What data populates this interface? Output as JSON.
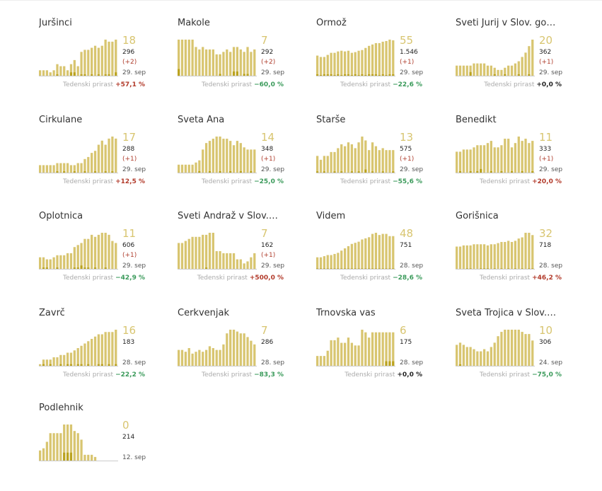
{
  "label_growth": "Tedenski prirast",
  "colors": {
    "bar": "#d8c570",
    "bar_new": "#bba320",
    "baseline": "#cccccc",
    "positive": "#b23a2a",
    "negative": "#3a9a5a"
  },
  "chart_data": [
    {
      "type": "bar",
      "title": "Juršinci",
      "active": "18",
      "total": "296",
      "delta": "(+2)",
      "date": "29. sep",
      "growth": "+57,1 %",
      "trend": "pos",
      "values": [
        3,
        3,
        3,
        2,
        3,
        6,
        5,
        5,
        3,
        6,
        8,
        5,
        12,
        13,
        13,
        14,
        15,
        14,
        15,
        18,
        17,
        17,
        18
      ],
      "new": [
        0,
        0,
        0,
        0,
        0,
        1,
        0,
        0,
        0,
        2,
        2,
        0,
        1,
        1,
        0,
        1,
        0,
        1,
        0,
        1,
        1,
        0,
        2
      ]
    },
    {
      "type": "bar",
      "title": "Makole",
      "active": "7",
      "total": "292",
      "delta": "(+2)",
      "date": "29. sep",
      "growth": "−60,0 %",
      "trend": "neg",
      "values": [
        15,
        15,
        15,
        15,
        15,
        12,
        11,
        12,
        11,
        11,
        11,
        9,
        9,
        10,
        11,
        10,
        12,
        12,
        11,
        10,
        12,
        10,
        11
      ],
      "new": [
        3,
        0,
        0,
        0,
        0,
        0,
        0,
        0,
        0,
        0,
        0,
        0,
        1,
        0,
        0,
        0,
        2,
        2,
        0,
        1,
        1,
        0,
        0
      ]
    },
    {
      "type": "bar",
      "title": "Ormož",
      "active": "55",
      "total": "1.546",
      "delta": "(+1)",
      "date": "29. sep",
      "growth": "−22,6 %",
      "trend": "neg",
      "values": [
        30,
        28,
        28,
        31,
        34,
        34,
        36,
        37,
        36,
        37,
        34,
        35,
        37,
        38,
        41,
        44,
        46,
        48,
        48,
        50,
        51,
        53,
        52
      ],
      "new": [
        3,
        2,
        3,
        3,
        3,
        2,
        3,
        2,
        3,
        3,
        2,
        3,
        2,
        3,
        2,
        3,
        3,
        3,
        2,
        3,
        2,
        3,
        3
      ]
    },
    {
      "type": "bar",
      "title": "Sveti Jurij v Slov. go…",
      "active": "20",
      "total": "362",
      "delta": "(+1)",
      "date": "29. sep",
      "growth": "+0,0 %",
      "trend": "zero",
      "values": [
        5,
        5,
        5,
        5,
        5,
        6,
        6,
        6,
        6,
        5,
        5,
        4,
        3,
        3,
        4,
        5,
        5,
        6,
        7,
        9,
        11,
        14,
        17
      ],
      "new": [
        0,
        0,
        0,
        0,
        2,
        0,
        0,
        0,
        0,
        0,
        0,
        1,
        0,
        0,
        1,
        0,
        0,
        0,
        1,
        0,
        0,
        1,
        0
      ]
    },
    {
      "type": "bar",
      "title": "Cirkulane",
      "active": "17",
      "total": "288",
      "delta": "(+1)",
      "date": "29. sep",
      "growth": "+12,5 %",
      "trend": "pos",
      "values": [
        4,
        4,
        4,
        4,
        4,
        5,
        5,
        5,
        5,
        4,
        4,
        5,
        5,
        7,
        8,
        10,
        11,
        14,
        16,
        14,
        17,
        18,
        17
      ],
      "new": [
        0,
        0,
        0,
        0,
        0,
        1,
        0,
        1,
        0,
        0,
        1,
        0,
        0,
        1,
        0,
        0,
        1,
        0,
        0,
        1,
        0,
        1,
        0
      ]
    },
    {
      "type": "bar",
      "title": "Sveta Ana",
      "active": "14",
      "total": "348",
      "delta": "(+1)",
      "date": "29. sep",
      "growth": "−25,0 %",
      "trend": "neg",
      "values": [
        4,
        4,
        4,
        4,
        4,
        5,
        6,
        11,
        14,
        15,
        16,
        17,
        17,
        16,
        16,
        15,
        13,
        15,
        14,
        12,
        11,
        11,
        11
      ],
      "new": [
        0,
        0,
        0,
        0,
        0,
        0,
        1,
        0,
        0,
        1,
        0,
        0,
        1,
        0,
        0,
        1,
        0,
        0,
        1,
        0,
        0,
        1,
        0
      ]
    },
    {
      "type": "bar",
      "title": "Starše",
      "active": "13",
      "total": "575",
      "delta": "(+1)",
      "date": "29. sep",
      "growth": "−55,6 %",
      "trend": "neg",
      "values": [
        9,
        7,
        9,
        9,
        11,
        11,
        13,
        15,
        14,
        16,
        15,
        13,
        16,
        19,
        17,
        12,
        16,
        14,
        12,
        13,
        12,
        12,
        12
      ],
      "new": [
        1,
        0,
        1,
        0,
        0,
        1,
        0,
        1,
        0,
        0,
        1,
        0,
        1,
        0,
        2,
        0,
        1,
        0,
        0,
        1,
        0,
        0,
        1
      ]
    },
    {
      "type": "bar",
      "title": "Benedikt",
      "active": "11",
      "total": "333",
      "delta": "(+1)",
      "date": "29. sep",
      "growth": "+20,0 %",
      "trend": "pos",
      "values": [
        10,
        10,
        11,
        11,
        11,
        12,
        13,
        13,
        13,
        14,
        15,
        12,
        12,
        13,
        16,
        16,
        12,
        14,
        17,
        15,
        16,
        14,
        15
      ],
      "new": [
        0,
        1,
        0,
        0,
        1,
        0,
        1,
        2,
        0,
        0,
        1,
        0,
        0,
        1,
        0,
        0,
        1,
        0,
        0,
        1,
        0,
        0,
        1
      ]
    },
    {
      "type": "bar",
      "title": "Oplotnica",
      "active": "11",
      "total": "606",
      "delta": "(+1)",
      "date": "29. sep",
      "growth": "−42,9 %",
      "trend": "neg",
      "values": [
        6,
        6,
        5,
        5,
        6,
        7,
        7,
        7,
        8,
        8,
        11,
        12,
        13,
        15,
        15,
        17,
        16,
        17,
        18,
        18,
        17,
        14,
        13
      ],
      "new": [
        0,
        1,
        1,
        0,
        0,
        1,
        0,
        0,
        0,
        0,
        1,
        1,
        2,
        1,
        1,
        0,
        1,
        0,
        0,
        1,
        0,
        0,
        0
      ]
    },
    {
      "type": "bar",
      "title": "Sveti Andraž v Slov.…",
      "active": "7",
      "total": "162",
      "delta": "(+1)",
      "date": "29. sep",
      "growth": "+500,0 %",
      "trend": "pos",
      "values": [
        13,
        13,
        14,
        15,
        16,
        16,
        16,
        17,
        17,
        18,
        18,
        9,
        9,
        8,
        8,
        8,
        8,
        5,
        5,
        3,
        4,
        6,
        8
      ],
      "new": [
        0,
        0,
        0,
        0,
        0,
        0,
        0,
        0,
        1,
        0,
        0,
        0,
        0,
        0,
        0,
        0,
        0,
        0,
        0,
        0,
        0,
        0,
        0
      ]
    },
    {
      "type": "bar",
      "title": "Videm",
      "active": "48",
      "total": "751",
      "delta": "",
      "date": "28. sep",
      "growth": "−28,6 %",
      "trend": "neg",
      "values": [
        11,
        11,
        12,
        13,
        13,
        14,
        15,
        17,
        19,
        21,
        23,
        24,
        25,
        27,
        28,
        29,
        32,
        33,
        31,
        32,
        32,
        30,
        30
      ],
      "new": [
        1,
        1,
        1,
        1,
        1,
        1,
        1,
        1,
        1,
        1,
        1,
        1,
        1,
        1,
        1,
        1,
        1,
        1,
        1,
        1,
        1,
        1,
        1
      ]
    },
    {
      "type": "bar",
      "title": "Gorišnica",
      "active": "32",
      "total": "718",
      "delta": "",
      "date": "28. sep",
      "growth": "+46,2 %",
      "trend": "pos",
      "values": [
        20,
        20,
        21,
        21,
        21,
        22,
        22,
        22,
        22,
        21,
        22,
        22,
        23,
        24,
        24,
        25,
        24,
        25,
        27,
        28,
        32,
        32,
        30
      ],
      "new": [
        0,
        0,
        0,
        1,
        1,
        0,
        0,
        1,
        1,
        1,
        0,
        1,
        0,
        1,
        0,
        1,
        0,
        1,
        0,
        1,
        0,
        1,
        1
      ]
    },
    {
      "type": "bar",
      "title": "Zavrč",
      "active": "16",
      "total": "183",
      "delta": "",
      "date": "28. sep",
      "growth": "−22,2 %",
      "trend": "neg",
      "values": [
        1,
        3,
        3,
        3,
        4,
        4,
        5,
        5,
        6,
        6,
        7,
        8,
        9,
        10,
        11,
        12,
        13,
        14,
        14,
        15,
        15,
        15,
        16
      ],
      "new": [
        0,
        1,
        0,
        1,
        0,
        0,
        1,
        0,
        1,
        1,
        0,
        1,
        1,
        0,
        1,
        0,
        0,
        1,
        1,
        0,
        1,
        0,
        1
      ]
    },
    {
      "type": "bar",
      "title": "Cerkvenjak",
      "active": "7",
      "total": "286",
      "delta": "",
      "date": "28. sep",
      "growth": "−83,3 %",
      "trend": "neg",
      "values": [
        9,
        9,
        8,
        10,
        7,
        8,
        9,
        8,
        9,
        11,
        10,
        9,
        9,
        12,
        18,
        20,
        20,
        19,
        18,
        18,
        16,
        14,
        12
      ],
      "new": [
        0,
        0,
        0,
        0,
        0,
        0,
        0,
        0,
        0,
        0,
        0,
        0,
        0,
        0,
        0,
        0,
        0,
        0,
        0,
        0,
        0,
        0,
        0
      ]
    },
    {
      "type": "bar",
      "title": "Trnovska vas",
      "active": "6",
      "total": "175",
      "delta": "",
      "date": "28. sep",
      "growth": "+0,0 %",
      "trend": "zero",
      "values": [
        4,
        4,
        4,
        6,
        10,
        10,
        11,
        9,
        9,
        11,
        9,
        8,
        8,
        14,
        13,
        11,
        13,
        13,
        13,
        13,
        13,
        13,
        13
      ],
      "new": [
        0,
        0,
        0,
        0,
        0,
        0,
        0,
        0,
        0,
        0,
        0,
        0,
        0,
        0,
        0,
        0,
        0,
        0,
        0,
        0,
        2,
        2,
        2
      ]
    },
    {
      "type": "bar",
      "title": "Sveta Trojica v Slov.…",
      "active": "10",
      "total": "306",
      "delta": "",
      "date": "24. sep",
      "growth": "−75,0 %",
      "trend": "neg",
      "values": [
        10,
        11,
        10,
        9,
        9,
        8,
        7,
        7,
        8,
        7,
        9,
        11,
        14,
        16,
        17,
        17,
        17,
        17,
        17,
        16,
        15,
        15,
        12
      ],
      "new": [
        0,
        1,
        0,
        0,
        0,
        0,
        0,
        0,
        0,
        0,
        0,
        0,
        0,
        0,
        0,
        0,
        0,
        0,
        0,
        0,
        0,
        0,
        0
      ]
    },
    {
      "type": "bar",
      "title": "Podlehnik",
      "active": "0",
      "total": "214",
      "delta": "",
      "date": "12. sep",
      "growth": "",
      "trend": "zero",
      "values": [
        5,
        6,
        9,
        13,
        13,
        13,
        13,
        17,
        17,
        17,
        14,
        13,
        10,
        3,
        3,
        3,
        2,
        0,
        0,
        0,
        0,
        0,
        0
      ],
      "new": [
        0,
        0,
        0,
        0,
        0,
        0,
        0,
        4,
        4,
        4,
        0,
        0,
        0,
        0,
        0,
        0,
        0,
        0,
        0,
        0,
        0,
        0,
        0
      ]
    }
  ]
}
